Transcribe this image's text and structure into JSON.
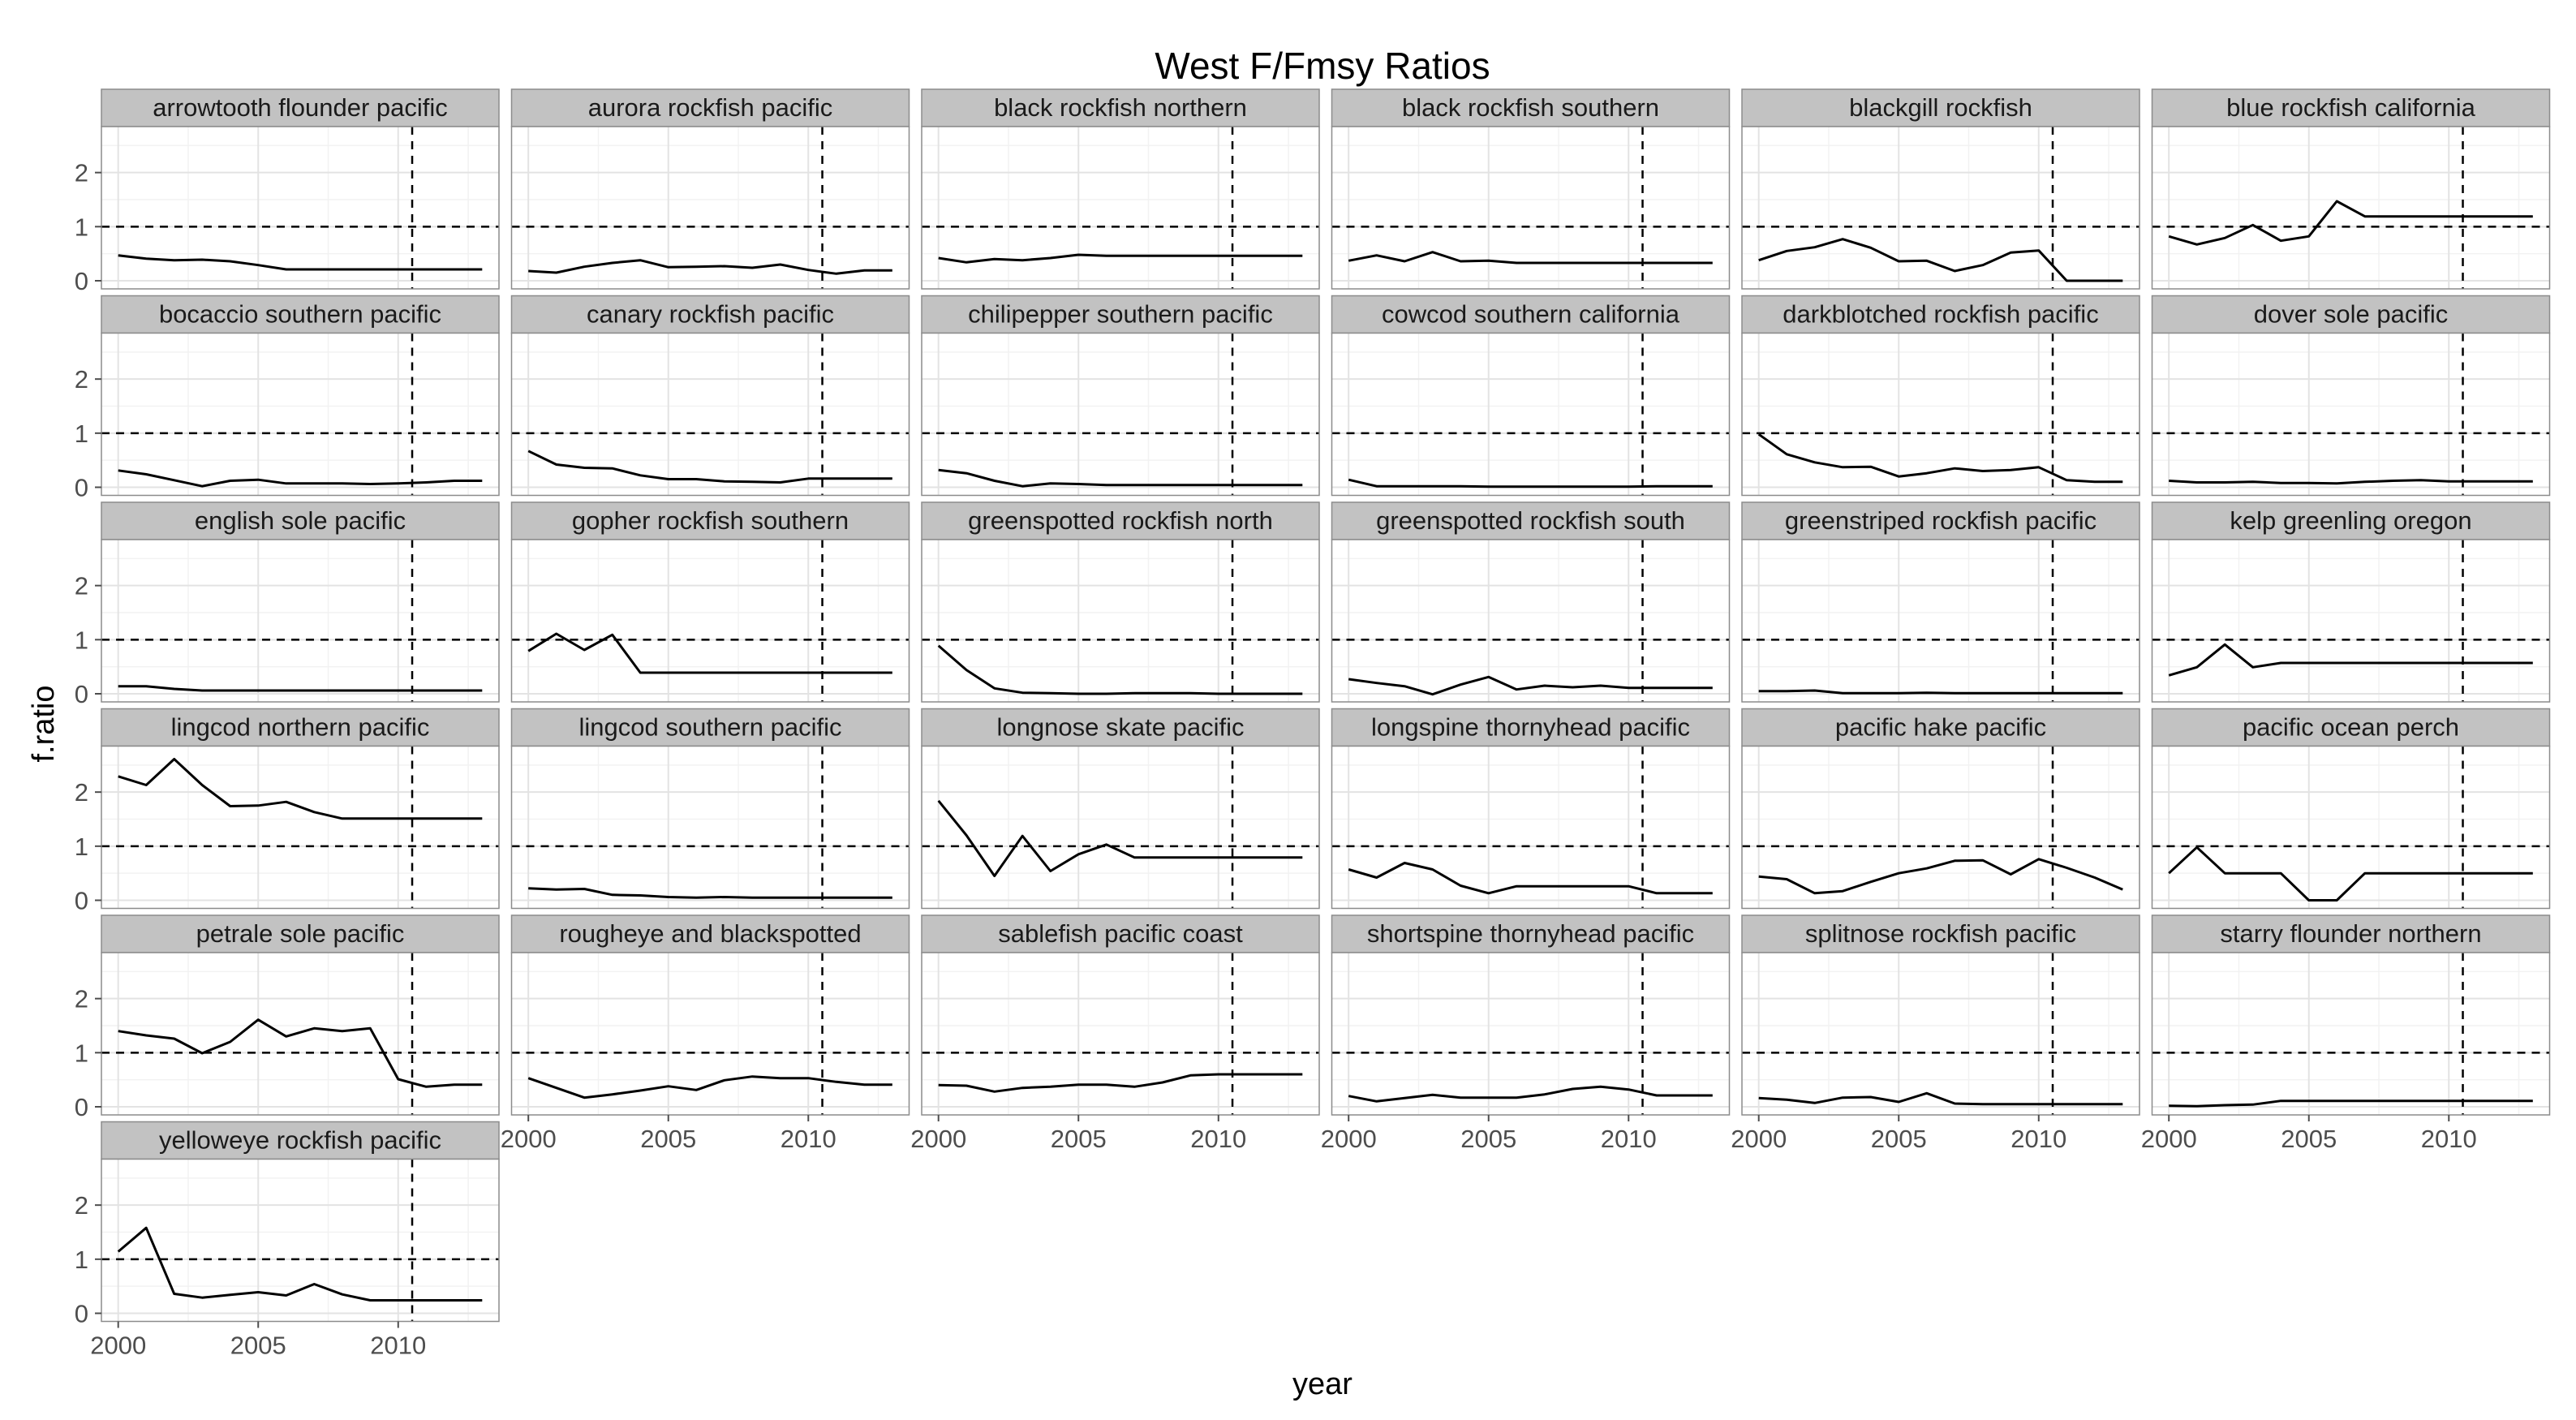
{
  "chart_data": {
    "type": "line",
    "title": "West F/Fmsy Ratios",
    "xlabel": "year",
    "ylabel": "f.ratio",
    "x": [
      2000,
      2001,
      2002,
      2003,
      2004,
      2005,
      2006,
      2007,
      2008,
      2009,
      2010,
      2011,
      2012,
      2013
    ],
    "xlim": [
      1999.4,
      2013.6
    ],
    "ylim": [
      -0.15,
      2.85
    ],
    "x_ticks": [
      2000,
      2005,
      2010
    ],
    "x_tick_labels": [
      "2000",
      "2005",
      "2010"
    ],
    "y_ticks": [
      0,
      1,
      2
    ],
    "y_tick_labels": [
      "0",
      "1",
      "2"
    ],
    "reference_lines": {
      "horizontal": 1,
      "vertical": 2010.5
    },
    "grid": true,
    "facet_columns": 6,
    "panels": [
      {
        "name": "arrowtooth flounder pacific",
        "values": [
          0.47,
          0.41,
          0.38,
          0.39,
          0.36,
          0.29,
          0.21,
          0.21,
          0.21,
          0.21,
          0.21,
          0.21,
          0.21,
          0.21
        ]
      },
      {
        "name": "aurora rockfish pacific",
        "values": [
          0.18,
          0.15,
          0.26,
          0.33,
          0.38,
          0.25,
          0.26,
          0.27,
          0.24,
          0.3,
          0.2,
          0.13,
          0.19,
          0.19
        ]
      },
      {
        "name": "black rockfish northern",
        "values": [
          0.42,
          0.34,
          0.4,
          0.38,
          0.42,
          0.48,
          0.46,
          0.46,
          0.46,
          0.46,
          0.46,
          0.46,
          0.46,
          0.46
        ]
      },
      {
        "name": "black rockfish southern",
        "values": [
          0.37,
          0.47,
          0.36,
          0.53,
          0.36,
          0.37,
          0.33,
          0.33,
          0.33,
          0.33,
          0.33,
          0.33,
          0.33,
          0.33
        ]
      },
      {
        "name": "blackgill rockfish",
        "values": [
          0.38,
          0.55,
          0.62,
          0.77,
          0.61,
          0.36,
          0.37,
          0.18,
          0.29,
          0.52,
          0.56,
          0.0,
          0.0,
          0.0
        ]
      },
      {
        "name": "blue rockfish california",
        "values": [
          0.82,
          0.67,
          0.79,
          1.03,
          0.74,
          0.82,
          1.47,
          1.19,
          1.19,
          1.19,
          1.19,
          1.19,
          1.19,
          1.19
        ]
      },
      {
        "name": "bocaccio southern pacific",
        "values": [
          0.31,
          0.24,
          0.13,
          0.02,
          0.12,
          0.14,
          0.07,
          0.07,
          0.07,
          0.06,
          0.07,
          0.09,
          0.12,
          0.12
        ]
      },
      {
        "name": "canary rockfish pacific",
        "values": [
          0.67,
          0.42,
          0.36,
          0.35,
          0.22,
          0.15,
          0.15,
          0.11,
          0.1,
          0.09,
          0.16,
          0.16,
          0.16,
          0.16
        ]
      },
      {
        "name": "chilipepper southern pacific",
        "values": [
          0.32,
          0.26,
          0.12,
          0.02,
          0.07,
          0.06,
          0.04,
          0.04,
          0.04,
          0.04,
          0.04,
          0.04,
          0.04,
          0.04
        ]
      },
      {
        "name": "cowcod southern california",
        "values": [
          0.14,
          0.02,
          0.02,
          0.02,
          0.02,
          0.01,
          0.01,
          0.01,
          0.01,
          0.01,
          0.01,
          0.02,
          0.02,
          0.02
        ]
      },
      {
        "name": "darkblotched rockfish pacific",
        "values": [
          0.98,
          0.61,
          0.46,
          0.37,
          0.38,
          0.2,
          0.26,
          0.35,
          0.3,
          0.32,
          0.37,
          0.13,
          0.1,
          0.1
        ]
      },
      {
        "name": "dover sole pacific",
        "values": [
          0.12,
          0.09,
          0.09,
          0.1,
          0.08,
          0.08,
          0.07,
          0.1,
          0.12,
          0.13,
          0.11,
          0.11,
          0.11,
          0.11
        ]
      },
      {
        "name": "english sole pacific",
        "values": [
          0.14,
          0.14,
          0.09,
          0.06,
          0.06,
          0.06,
          0.06,
          0.06,
          0.06,
          0.06,
          0.06,
          0.06,
          0.06,
          0.06
        ]
      },
      {
        "name": "gopher rockfish southern",
        "values": [
          0.79,
          1.11,
          0.81,
          1.09,
          0.39,
          0.39,
          0.39,
          0.39,
          0.39,
          0.39,
          0.39,
          0.39,
          0.39,
          0.39
        ]
      },
      {
        "name": "greenspotted rockfish north",
        "values": [
          0.89,
          0.44,
          0.1,
          0.02,
          0.01,
          0.0,
          0.0,
          0.01,
          0.01,
          0.01,
          0.0,
          0.0,
          0.0,
          0.0
        ]
      },
      {
        "name": "greenspotted rockfish south",
        "values": [
          0.27,
          0.2,
          0.14,
          -0.01,
          0.17,
          0.31,
          0.08,
          0.15,
          0.12,
          0.15,
          0.11,
          0.11,
          0.11,
          0.11
        ]
      },
      {
        "name": "greenstriped rockfish pacific",
        "values": [
          0.05,
          0.05,
          0.06,
          0.01,
          0.01,
          0.01,
          0.02,
          0.01,
          0.01,
          0.01,
          0.01,
          0.01,
          0.01,
          0.01
        ]
      },
      {
        "name": "kelp greenling oregon",
        "values": [
          0.34,
          0.49,
          0.91,
          0.49,
          0.57,
          0.57,
          0.57,
          0.57,
          0.57,
          0.57,
          0.57,
          0.57,
          0.57,
          0.57
        ]
      },
      {
        "name": "lingcod northern pacific",
        "values": [
          2.29,
          2.13,
          2.61,
          2.13,
          1.74,
          1.75,
          1.82,
          1.63,
          1.51,
          1.51,
          1.51,
          1.51,
          1.51,
          1.51
        ]
      },
      {
        "name": "lingcod southern pacific",
        "values": [
          0.22,
          0.2,
          0.21,
          0.1,
          0.09,
          0.06,
          0.05,
          0.06,
          0.05,
          0.05,
          0.05,
          0.05,
          0.05,
          0.05
        ]
      },
      {
        "name": "longnose skate pacific",
        "values": [
          1.84,
          1.2,
          0.45,
          1.19,
          0.54,
          0.85,
          1.03,
          0.79,
          0.79,
          0.79,
          0.79,
          0.79,
          0.79,
          0.79
        ]
      },
      {
        "name": "longspine thornyhead pacific",
        "values": [
          0.57,
          0.42,
          0.69,
          0.57,
          0.27,
          0.13,
          0.26,
          0.26,
          0.26,
          0.26,
          0.26,
          0.13,
          0.13,
          0.13
        ]
      },
      {
        "name": "pacific hake pacific",
        "values": [
          0.44,
          0.39,
          0.13,
          0.17,
          0.34,
          0.5,
          0.59,
          0.73,
          0.74,
          0.48,
          0.76,
          0.6,
          0.42,
          0.2
        ]
      },
      {
        "name": "pacific ocean perch",
        "values": [
          0.5,
          0.98,
          0.5,
          0.5,
          0.5,
          0.0,
          0.0,
          0.5,
          0.5,
          0.5,
          0.5,
          0.5,
          0.5,
          0.5
        ]
      },
      {
        "name": "petrale sole pacific",
        "values": [
          1.4,
          1.32,
          1.26,
          0.99,
          1.2,
          1.61,
          1.3,
          1.45,
          1.4,
          1.45,
          0.51,
          0.37,
          0.41,
          0.41
        ]
      },
      {
        "name": "rougheye and blackspotted",
        "values": [
          0.53,
          0.35,
          0.17,
          0.23,
          0.3,
          0.38,
          0.31,
          0.49,
          0.56,
          0.53,
          0.53,
          0.46,
          0.41,
          0.41
        ]
      },
      {
        "name": "sablefish pacific coast",
        "values": [
          0.4,
          0.39,
          0.28,
          0.35,
          0.37,
          0.41,
          0.41,
          0.37,
          0.45,
          0.58,
          0.6,
          0.6,
          0.6,
          0.6
        ]
      },
      {
        "name": "shortspine thornyhead pacific",
        "values": [
          0.2,
          0.1,
          0.16,
          0.22,
          0.17,
          0.17,
          0.17,
          0.23,
          0.33,
          0.37,
          0.32,
          0.21,
          0.21,
          0.21
        ]
      },
      {
        "name": "splitnose rockfish pacific",
        "values": [
          0.16,
          0.13,
          0.07,
          0.17,
          0.18,
          0.09,
          0.25,
          0.06,
          0.05,
          0.05,
          0.05,
          0.05,
          0.05,
          0.05
        ]
      },
      {
        "name": "starry flounder northern",
        "values": [
          0.02,
          0.01,
          0.03,
          0.04,
          0.11,
          0.11,
          0.11,
          0.11,
          0.11,
          0.11,
          0.11,
          0.11,
          0.11,
          0.11
        ]
      },
      {
        "name": "yelloweye rockfish pacific",
        "values": [
          1.14,
          1.58,
          0.36,
          0.29,
          0.34,
          0.39,
          0.33,
          0.54,
          0.35,
          0.24,
          0.24,
          0.24,
          0.24,
          0.24
        ]
      }
    ]
  }
}
